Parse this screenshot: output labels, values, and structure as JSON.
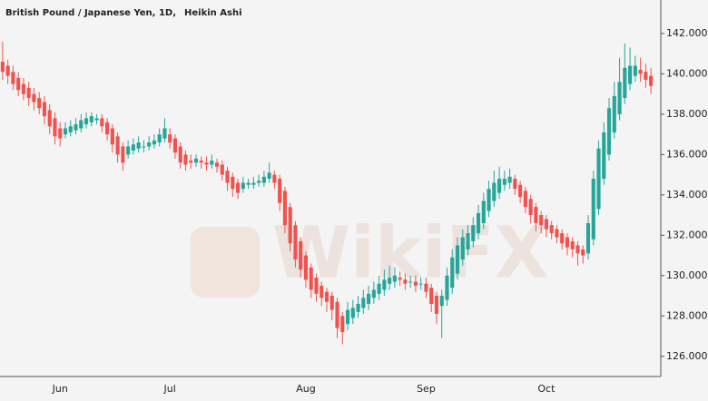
{
  "chart_data": {
    "type": "candlestick",
    "title": "British Pound / Japanese Yen, 1D,",
    "subtitle": "Heikin Ashi",
    "watermark": "WikiFX",
    "up_color": "#26a69a",
    "down_color": "#ef5350",
    "categories": [
      null,
      null,
      null,
      null,
      null,
      null,
      null,
      null,
      null,
      null,
      null,
      "Jun",
      null,
      null,
      null,
      null,
      null,
      null,
      null,
      null,
      null,
      null,
      null,
      null,
      null,
      null,
      null,
      null,
      null,
      null,
      null,
      null,
      "Jul",
      null,
      null,
      null,
      null,
      null,
      null,
      null,
      null,
      null,
      null,
      null,
      null,
      null,
      null,
      null,
      null,
      null,
      null,
      null,
      null,
      null,
      null,
      null,
      null,
      null,
      "Aug",
      null,
      null,
      null,
      null,
      null,
      null,
      null,
      null,
      null,
      null,
      null,
      null,
      null,
      null,
      null,
      null,
      null,
      null,
      null,
      null,
      null,
      null,
      "Sep",
      null,
      null,
      null,
      null,
      null,
      null,
      null,
      null,
      null,
      null,
      null,
      null,
      null,
      null,
      null,
      null,
      null,
      null,
      null,
      null,
      null,
      null,
      "Oct",
      null,
      null,
      null,
      null,
      null,
      null,
      null,
      null,
      null,
      null,
      null,
      null,
      null,
      null,
      null,
      null,
      null,
      null,
      null,
      null
    ],
    "open": [
      140.6,
      140.4,
      140.1,
      139.8,
      139.5,
      139.3,
      139.0,
      138.8,
      138.6,
      138.2,
      137.8,
      137.3,
      137.0,
      137.1,
      137.2,
      137.3,
      137.5,
      137.6,
      137.7,
      137.8,
      137.6,
      137.3,
      136.9,
      136.4,
      136.0,
      136.2,
      136.3,
      136.4,
      136.4,
      136.5,
      136.6,
      136.8,
      137.0,
      136.8,
      136.4,
      136.0,
      135.7,
      135.6,
      135.7,
      135.6,
      135.5,
      135.6,
      135.5,
      135.2,
      134.9,
      134.6,
      134.3,
      134.5,
      134.5,
      134.6,
      134.6,
      134.8,
      135.0,
      134.8,
      134.2,
      133.4,
      132.5,
      131.7,
      131.0,
      130.4,
      129.9,
      129.5,
      129.2,
      129.0,
      128.7,
      128.0,
      127.6,
      127.9,
      128.2,
      128.4,
      128.6,
      128.9,
      129.1,
      129.3,
      129.6,
      129.7,
      129.9,
      129.8,
      129.7,
      129.7,
      129.6,
      129.6,
      129.4,
      129.0,
      128.5,
      128.8,
      129.4,
      130.1,
      130.8,
      131.3,
      131.7,
      132.1,
      132.6,
      133.2,
      133.7,
      134.1,
      134.5,
      134.6,
      134.8,
      134.5,
      134.2,
      133.8,
      133.4,
      133.0,
      132.8,
      132.5,
      132.3,
      132.1,
      131.9,
      131.7,
      131.5,
      131.3,
      131.1,
      131.8,
      133.3,
      134.8,
      136.0,
      137.1,
      138.0,
      138.8,
      139.5,
      139.9,
      140.2,
      140.1,
      139.9
    ],
    "high": [
      141.6,
      140.7,
      140.4,
      140.1,
      139.8,
      139.6,
      139.3,
      139.1,
      138.9,
      138.5,
      138.1,
      137.6,
      137.6,
      137.7,
      137.8,
      138.0,
      138.1,
      138.1,
      138.0,
      138.0,
      137.8,
      137.5,
      137.1,
      136.6,
      136.7,
      136.8,
      136.9,
      136.7,
      136.9,
      137.0,
      137.3,
      137.8,
      137.3,
      137.0,
      136.6,
      136.2,
      136.0,
      136.0,
      135.9,
      135.9,
      136.0,
      135.8,
      135.7,
      135.4,
      135.1,
      134.8,
      134.9,
      134.8,
      134.9,
      135.0,
      135.2,
      135.6,
      135.2,
      135.0,
      134.4,
      133.6,
      132.7,
      131.9,
      131.2,
      130.6,
      130.1,
      129.7,
      129.4,
      129.2,
      128.9,
      128.2,
      128.7,
      128.8,
      129.0,
      129.3,
      129.5,
      129.7,
      130.0,
      130.3,
      130.5,
      130.4,
      130.2,
      130.1,
      130.0,
      130.0,
      129.9,
      129.9,
      129.6,
      129.2,
      129.3,
      130.4,
      131.3,
      131.9,
      132.3,
      132.5,
      132.9,
      133.5,
      134.1,
      134.7,
      135.2,
      135.4,
      135.2,
      135.3,
      135.0,
      134.7,
      134.4,
      134.0,
      133.6,
      133.2,
      133.0,
      132.7,
      132.5,
      132.3,
      132.1,
      131.9,
      131.7,
      131.5,
      133.0,
      135.2,
      136.7,
      137.6,
      138.8,
      139.6,
      140.8,
      141.5,
      141.3,
      140.9,
      140.8,
      140.5,
      140.3
    ],
    "low": [
      139.7,
      139.5,
      139.2,
      138.9,
      138.7,
      138.4,
      138.2,
      138.0,
      137.5,
      137.0,
      136.5,
      136.4,
      136.8,
      136.9,
      137.0,
      137.1,
      137.3,
      137.4,
      137.5,
      137.1,
      136.7,
      136.1,
      135.6,
      135.2,
      135.8,
      136.0,
      136.1,
      136.1,
      136.2,
      136.3,
      136.4,
      136.6,
      136.3,
      135.8,
      135.3,
      135.2,
      135.3,
      135.4,
      135.3,
      135.2,
      135.3,
      135.1,
      134.7,
      134.2,
      133.9,
      133.8,
      134.1,
      134.3,
      134.3,
      134.4,
      134.4,
      134.6,
      134.3,
      133.2,
      132.1,
      131.2,
      130.4,
      129.9,
      129.4,
      128.9,
      128.7,
      128.5,
      128.2,
      127.8,
      126.9,
      126.6,
      127.3,
      127.6,
      127.9,
      128.1,
      128.3,
      128.6,
      128.8,
      129.0,
      129.3,
      129.4,
      129.5,
      129.3,
      129.4,
      129.2,
      129.3,
      128.9,
      128.2,
      127.6,
      126.9,
      128.5,
      129.1,
      129.8,
      130.5,
      131.0,
      131.4,
      131.8,
      132.3,
      132.9,
      133.4,
      133.8,
      134.2,
      134.3,
      134.0,
      133.6,
      133.1,
      132.6,
      132.2,
      132.1,
      131.9,
      131.8,
      131.6,
      131.3,
      131.0,
      130.9,
      130.5,
      130.6,
      130.8,
      131.5,
      133.0,
      134.5,
      135.7,
      136.8,
      137.7,
      138.5,
      139.2,
      139.6,
      139.6,
      139.3,
      139.0
    ],
    "close": [
      140.1,
      139.9,
      139.5,
      139.2,
      139.0,
      138.8,
      138.6,
      138.3,
      137.9,
      137.4,
      136.9,
      136.8,
      137.3,
      137.4,
      137.5,
      137.7,
      137.8,
      137.9,
      137.8,
      137.4,
      137.0,
      136.5,
      136.0,
      135.6,
      136.4,
      136.5,
      136.6,
      136.4,
      136.6,
      136.7,
      137.0,
      137.3,
      136.6,
      136.1,
      135.6,
      135.5,
      135.6,
      135.8,
      135.6,
      135.5,
      135.7,
      135.4,
      135.0,
      134.6,
      134.3,
      134.1,
      134.6,
      134.6,
      134.6,
      134.7,
      134.9,
      135.1,
      134.6,
      133.6,
      132.5,
      131.6,
      130.8,
      130.3,
      129.8,
      129.3,
      129.1,
      128.9,
      128.7,
      128.3,
      127.4,
      127.2,
      128.3,
      128.4,
      128.6,
      128.9,
      129.1,
      129.3,
      129.6,
      129.8,
      129.9,
      130.0,
      129.8,
      129.6,
      129.7,
      129.5,
      129.6,
      129.2,
      128.6,
      128.1,
      129.0,
      130.0,
      130.9,
      131.5,
      131.9,
      132.1,
      132.5,
      133.1,
      133.7,
      134.3,
      134.6,
      134.8,
      134.8,
      134.9,
      134.3,
      133.9,
      133.4,
      133.0,
      132.6,
      132.5,
      132.3,
      132.1,
      131.9,
      131.6,
      131.4,
      131.3,
      131.1,
      131.0,
      132.6,
      134.8,
      136.3,
      137.1,
      138.3,
      138.9,
      139.6,
      140.3,
      140.4,
      140.4,
      140.0,
      139.7,
      139.4
    ],
    "ylim": [
      125.0,
      143.66
    ],
    "yticks": [
      {
        "value": 126,
        "label": "126.000"
      },
      {
        "value": 128,
        "label": "128.000"
      },
      {
        "value": 130,
        "label": "130.000"
      },
      {
        "value": 132,
        "label": "132.000"
      },
      {
        "value": 134,
        "label": "134.000"
      },
      {
        "value": 136,
        "label": "136.000"
      },
      {
        "value": 138,
        "label": "138.000"
      },
      {
        "value": 140,
        "label": "140.000"
      },
      {
        "value": 142,
        "label": "142.000"
      }
    ]
  }
}
